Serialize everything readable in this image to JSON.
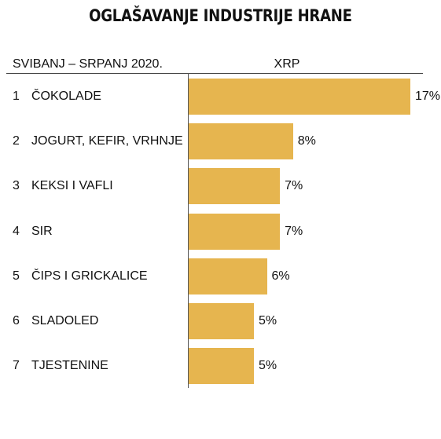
{
  "title": "OGLAŠAVANJE INDUSTRIJE HRANE",
  "period": "SVIBANJ – SRPANJ 2020.",
  "column_label": "XRP",
  "colors": {
    "bar": "#e6b54f",
    "axis": "#555555",
    "text": "#111111"
  },
  "chart_data": {
    "type": "bar",
    "orientation": "horizontal",
    "categories": [
      "ČOKOLADE",
      "JOGURT, KEFIR, VRHNJE",
      "KEKSI I VAFLI",
      "SIR",
      "ČIPS I GRICKALICE",
      "SLADOLED",
      "TJESTENINE"
    ],
    "ranks": [
      "1",
      "2",
      "3",
      "4",
      "5",
      "6",
      "7"
    ],
    "values": [
      17,
      8,
      7,
      7,
      6,
      5,
      5
    ],
    "value_labels": [
      "17%",
      "8%",
      "7%",
      "7%",
      "6%",
      "5%",
      "5%"
    ],
    "title": "OGLAŠAVANJE INDUSTRIJE HRANE",
    "xlim": [
      0,
      17
    ],
    "grid": false,
    "legend": "none"
  }
}
